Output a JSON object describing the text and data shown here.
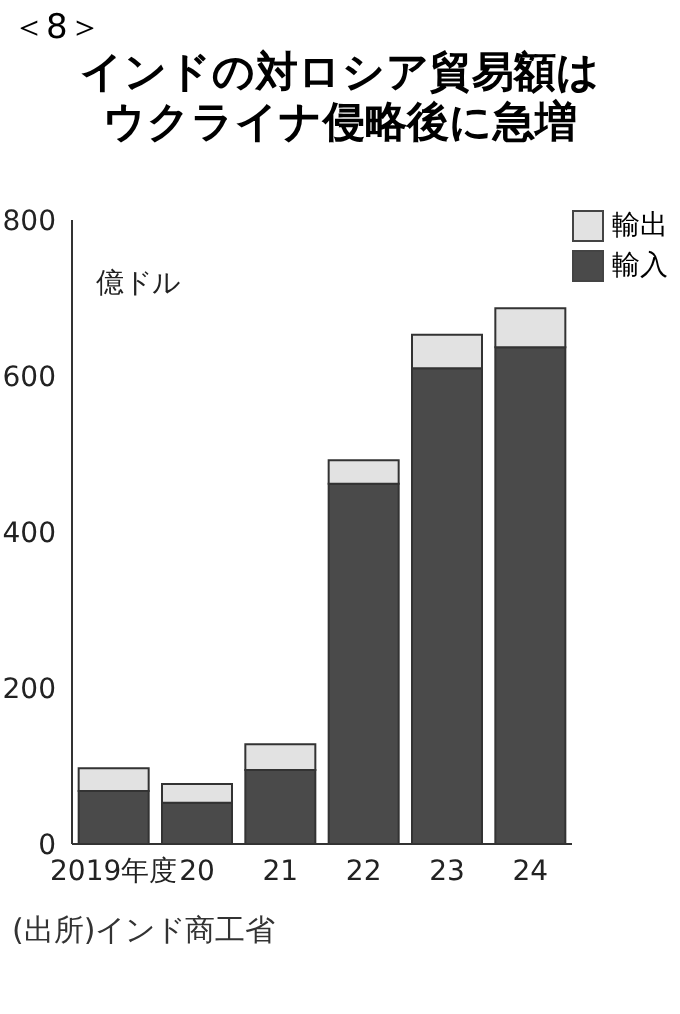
{
  "chart_data": {
    "type": "bar",
    "title": "インドの対ロシア貿易額はウクライナ侵略後に急増",
    "ylabel": "億ドル",
    "categories": [
      "2019年度",
      "20",
      "21",
      "22",
      "23",
      "24"
    ],
    "stacked": true,
    "series": [
      {
        "name": "輸入",
        "color": "#4a4a4a",
        "values": [
          68,
          53,
          95,
          462,
          610,
          637
        ]
      },
      {
        "name": "輸出",
        "color": "#e2e2e2",
        "values": [
          29,
          24,
          33,
          30,
          43,
          50
        ]
      }
    ],
    "ylim": [
      0,
      800
    ],
    "yticks": [
      0,
      200,
      400,
      600,
      800
    ],
    "grid": false,
    "legend": "top right",
    "annotations": [
      "＜8＞",
      "(出所)インド商工省"
    ]
  }
}
